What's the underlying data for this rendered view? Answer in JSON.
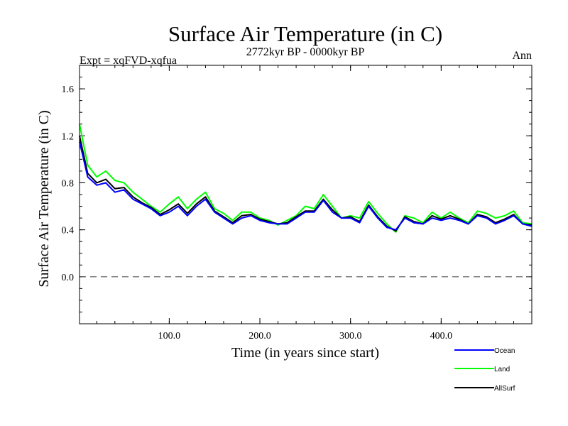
{
  "chart_data": {
    "type": "line",
    "title": "Surface Air Temperature (in C)",
    "subtitle": "2772kyr BP - 0000kyr BP",
    "left_label": "Expt = xqFVD-xqfua",
    "right_label": "Ann",
    "xlabel": "Time (in years since start)",
    "ylabel": "Surface Air Temperature (in C)",
    "xlim": [
      1,
      500
    ],
    "ylim": [
      -0.4,
      1.8
    ],
    "x_ticks": [
      100,
      200,
      300,
      400
    ],
    "x_tick_labels": [
      "100.0",
      "200.0",
      "300.0",
      "400.0"
    ],
    "y_ticks": [
      0.0,
      0.4,
      0.8,
      1.2,
      1.6
    ],
    "y_tick_labels": [
      "0.0",
      "0.4",
      "0.8",
      "1.2",
      "1.6"
    ],
    "reference_line": 0.0,
    "legend_position": "bottom-right",
    "x": [
      1,
      10,
      20,
      30,
      40,
      50,
      60,
      70,
      80,
      90,
      100,
      110,
      120,
      130,
      140,
      150,
      160,
      170,
      180,
      190,
      200,
      210,
      220,
      230,
      240,
      250,
      260,
      270,
      280,
      290,
      300,
      310,
      320,
      330,
      340,
      350,
      360,
      370,
      380,
      390,
      400,
      410,
      420,
      430,
      440,
      450,
      460,
      470,
      480,
      490,
      500
    ],
    "series": [
      {
        "name": "Ocean",
        "color": "#0000ff",
        "values": [
          1.15,
          0.85,
          0.78,
          0.8,
          0.72,
          0.74,
          0.66,
          0.62,
          0.58,
          0.52,
          0.55,
          0.6,
          0.52,
          0.6,
          0.66,
          0.55,
          0.5,
          0.45,
          0.5,
          0.52,
          0.48,
          0.46,
          0.45,
          0.45,
          0.5,
          0.55,
          0.55,
          0.65,
          0.55,
          0.5,
          0.5,
          0.46,
          0.6,
          0.5,
          0.42,
          0.4,
          0.5,
          0.46,
          0.45,
          0.5,
          0.48,
          0.5,
          0.48,
          0.45,
          0.52,
          0.5,
          0.45,
          0.48,
          0.52,
          0.45,
          0.43
        ]
      },
      {
        "name": "Land",
        "color": "#00ff00",
        "values": [
          1.3,
          0.95,
          0.85,
          0.9,
          0.82,
          0.8,
          0.72,
          0.66,
          0.6,
          0.55,
          0.62,
          0.68,
          0.58,
          0.66,
          0.72,
          0.58,
          0.54,
          0.48,
          0.55,
          0.55,
          0.5,
          0.48,
          0.44,
          0.48,
          0.52,
          0.6,
          0.58,
          0.7,
          0.6,
          0.5,
          0.52,
          0.5,
          0.64,
          0.54,
          0.45,
          0.38,
          0.52,
          0.5,
          0.46,
          0.55,
          0.5,
          0.55,
          0.5,
          0.46,
          0.56,
          0.54,
          0.5,
          0.52,
          0.56,
          0.46,
          0.45
        ]
      },
      {
        "name": "AllSurf",
        "color": "#000000",
        "values": [
          1.2,
          0.88,
          0.8,
          0.83,
          0.75,
          0.76,
          0.68,
          0.63,
          0.59,
          0.53,
          0.57,
          0.62,
          0.54,
          0.62,
          0.68,
          0.56,
          0.51,
          0.46,
          0.52,
          0.53,
          0.49,
          0.47,
          0.45,
          0.46,
          0.51,
          0.56,
          0.56,
          0.66,
          0.57,
          0.5,
          0.51,
          0.47,
          0.61,
          0.51,
          0.43,
          0.39,
          0.51,
          0.47,
          0.45,
          0.52,
          0.49,
          0.52,
          0.49,
          0.45,
          0.53,
          0.51,
          0.46,
          0.49,
          0.53,
          0.45,
          0.44
        ]
      }
    ]
  }
}
